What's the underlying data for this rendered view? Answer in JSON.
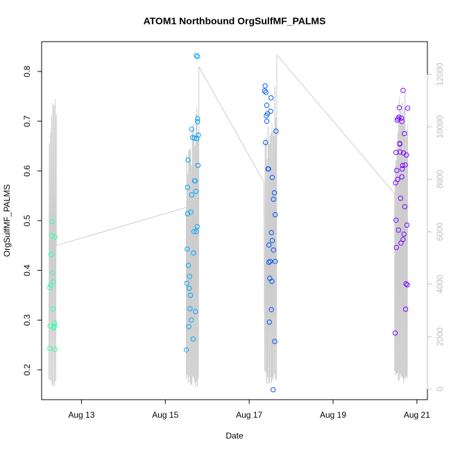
{
  "chart_data": {
    "type": "scatter",
    "title": "ATOM1 Northbound OrgSulfMF_PALMS",
    "xlabel": "Date",
    "ylabel": "OrgSulfMF_PALMS",
    "x_ticks": [
      "Aug 13",
      "Aug 15",
      "Aug 17",
      "Aug 19",
      "Aug 21"
    ],
    "x_tick_values": [
      13,
      15,
      17,
      19,
      21
    ],
    "x_range": [
      12.05,
      21.25
    ],
    "y_ticks": [
      "0.2",
      "0.3",
      "0.4",
      "0.5",
      "0.6",
      "0.7",
      "0.8"
    ],
    "y_tick_values": [
      0.2,
      0.3,
      0.4,
      0.5,
      0.6,
      0.7,
      0.8
    ],
    "ylim": [
      0.14,
      0.86
    ],
    "y2_ticks": [
      "0",
      "2000",
      "4000",
      "6000",
      "8000",
      "10000",
      "12000"
    ],
    "y2_tick_values": [
      0,
      2000,
      4000,
      6000,
      8000,
      10000,
      12000
    ],
    "y2lim": [
      -400,
      13250
    ],
    "colors": {
      "altitude_line": "#cccccc",
      "axis": "#000000",
      "right_axis": "#bdbdbd",
      "point_scale": [
        "#40ffaa",
        "#00bfff",
        "#0040ff",
        "#8000ff"
      ]
    },
    "grid": false,
    "legend": "none",
    "series": [
      {
        "values": [
          [
            12.24,
            0.243
          ],
          [
            12.25,
            0.288
          ],
          [
            12.24,
            0.365
          ],
          [
            12.26,
            0.37
          ],
          [
            12.27,
            0.432
          ],
          [
            12.28,
            0.432
          ],
          [
            12.29,
            0.47
          ],
          [
            12.3,
            0.498
          ],
          [
            12.31,
            0.395
          ],
          [
            12.32,
            0.322
          ],
          [
            12.33,
            0.377
          ],
          [
            12.34,
            0.286
          ],
          [
            12.34,
            0.284
          ],
          [
            12.36,
            0.288
          ],
          [
            12.36,
            0.294
          ],
          [
            12.37,
            0.241
          ],
          [
            12.37,
            0.467
          ],
          [
            15.5,
            0.24
          ],
          [
            15.51,
            0.374
          ],
          [
            15.52,
            0.443
          ],
          [
            15.53,
            0.567
          ],
          [
            15.53,
            0.514
          ],
          [
            15.54,
            0.622
          ],
          [
            15.55,
            0.41
          ],
          [
            15.56,
            0.287
          ],
          [
            15.57,
            0.364
          ],
          [
            15.58,
            0.388
          ],
          [
            15.59,
            0.323
          ],
          [
            15.6,
            0.35
          ],
          [
            15.61,
            0.517
          ],
          [
            15.62,
            0.3
          ],
          [
            15.63,
            0.552
          ],
          [
            15.63,
            0.684
          ],
          [
            15.65,
            0.667
          ],
          [
            15.66,
            0.262
          ],
          [
            15.67,
            0.435
          ],
          [
            15.68,
            0.478
          ],
          [
            15.69,
            0.666
          ],
          [
            15.7,
            0.58
          ],
          [
            15.71,
            0.58
          ],
          [
            15.72,
            0.317
          ],
          [
            15.73,
            0.559
          ],
          [
            15.74,
            0.478
          ],
          [
            15.75,
            0.665
          ],
          [
            15.76,
            0.488
          ],
          [
            15.77,
            0.699
          ],
          [
            15.77,
            0.705
          ],
          [
            15.78,
            0.611
          ],
          [
            15.79,
            0.672
          ],
          [
            15.74,
            0.832
          ],
          [
            15.77,
            0.83
          ],
          [
            17.37,
            0.761
          ],
          [
            17.38,
            0.771
          ],
          [
            17.39,
            0.657
          ],
          [
            17.4,
            0.758
          ],
          [
            17.41,
            0.711
          ],
          [
            17.42,
            0.7
          ],
          [
            17.42,
            0.732
          ],
          [
            17.44,
            0.715
          ],
          [
            17.45,
            0.604
          ],
          [
            17.46,
            0.604
          ],
          [
            17.47,
            0.451
          ],
          [
            17.47,
            0.416
          ],
          [
            17.48,
            0.296
          ],
          [
            17.49,
            0.384
          ],
          [
            17.5,
            0.418
          ],
          [
            17.51,
            0.72
          ],
          [
            17.52,
            0.747
          ],
          [
            17.53,
            0.476
          ],
          [
            17.53,
            0.321
          ],
          [
            17.54,
            0.378
          ],
          [
            17.55,
            0.46
          ],
          [
            17.55,
            0.587
          ],
          [
            17.57,
            0.16
          ],
          [
            17.58,
            0.441
          ],
          [
            17.58,
            0.543
          ],
          [
            17.6,
            0.556
          ],
          [
            17.61,
            0.257
          ],
          [
            17.62,
            0.418
          ],
          [
            17.62,
            0.512
          ],
          [
            17.64,
            0.68
          ],
          [
            20.48,
            0.274
          ],
          [
            20.49,
            0.576
          ],
          [
            20.5,
            0.501
          ],
          [
            20.5,
            0.637
          ],
          [
            20.51,
            0.446
          ],
          [
            20.52,
            0.601
          ],
          [
            20.53,
            0.702
          ],
          [
            20.54,
            0.583
          ],
          [
            20.55,
            0.705
          ],
          [
            20.56,
            0.481
          ],
          [
            20.57,
            0.708
          ],
          [
            20.58,
            0.727
          ],
          [
            20.59,
            0.654
          ],
          [
            20.59,
            0.655
          ],
          [
            20.6,
            0.638
          ],
          [
            20.61,
            0.545
          ],
          [
            20.62,
            0.455
          ],
          [
            20.63,
            0.706
          ],
          [
            20.64,
            0.588
          ],
          [
            20.64,
            0.7
          ],
          [
            20.65,
            0.604
          ],
          [
            20.66,
            0.611
          ],
          [
            20.67,
            0.462
          ],
          [
            20.67,
            0.762
          ],
          [
            20.68,
            0.636
          ],
          [
            20.69,
            0.473
          ],
          [
            20.7,
            0.675
          ],
          [
            20.71,
            0.528
          ],
          [
            20.72,
            0.612
          ],
          [
            20.73,
            0.322
          ],
          [
            20.74,
            0.373
          ],
          [
            20.75,
            0.632
          ],
          [
            20.76,
            0.491
          ],
          [
            20.77,
            0.371
          ],
          [
            20.78,
            0.726
          ]
        ]
      }
    ]
  }
}
